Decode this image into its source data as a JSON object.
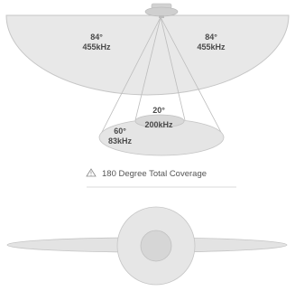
{
  "side_beam_left": {
    "angle": "84°",
    "frequency": "455kHz"
  },
  "side_beam_right": {
    "angle": "84°",
    "frequency": "455kHz"
  },
  "narrow_beam": {
    "angle": "20°",
    "frequency": "200kHz"
  },
  "wide_beam": {
    "angle": "60°",
    "frequency": "83kHz"
  },
  "coverage": {
    "icon": "warning-triangle-icon",
    "caption": "180 Degree Total Coverage"
  },
  "colors": {
    "beam_fill": "#e6e6e6",
    "beam_stroke": "#c8c8c8",
    "line": "#bdbdbd",
    "text": "#4a4a4a"
  }
}
